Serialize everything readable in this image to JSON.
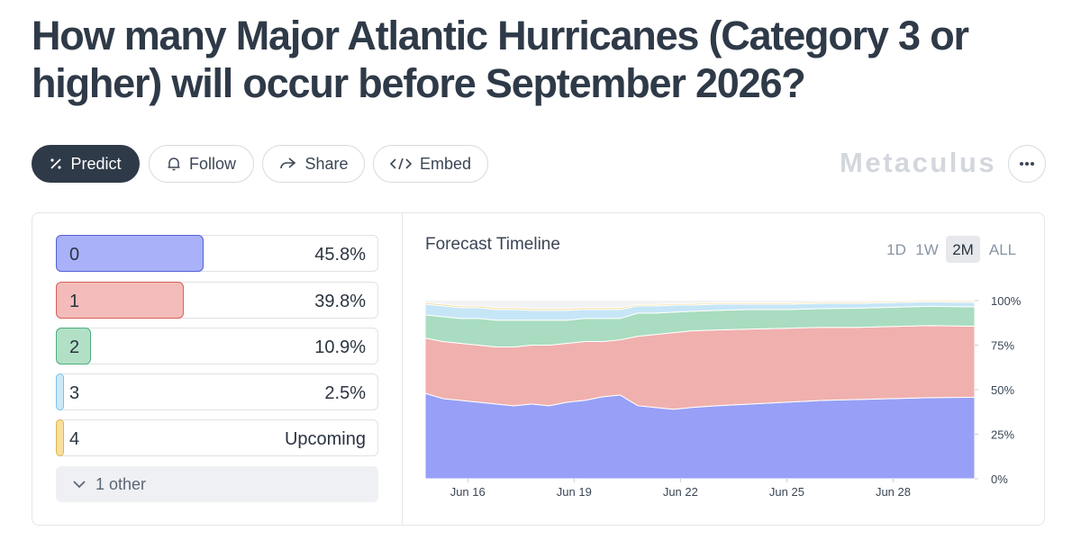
{
  "header": {
    "title_lines": [
      "How many Major Atlantic Hurricanes (Category 3 or",
      "higher) will occur before September 2026?"
    ]
  },
  "toolbar": {
    "buttons": [
      "Predict",
      "Follow",
      "Share",
      "Embed"
    ],
    "brand": "Metaculus"
  },
  "options": [
    {
      "label": "0",
      "value": 45.8,
      "value_label": "45.8%",
      "color": "#a9b1f8",
      "border": "#5561d6"
    },
    {
      "label": "1",
      "value": 39.8,
      "value_label": "39.8%",
      "color": "#f3bcba",
      "border": "#d9605c"
    },
    {
      "label": "2",
      "value": 10.9,
      "value_label": "10.9%",
      "color": "#b2e0c7",
      "border": "#4fae7c"
    },
    {
      "label": "3",
      "value": 2.5,
      "value_label": "2.5%",
      "color": "#cde9f8",
      "border": "#7cc3e8"
    },
    {
      "label": "4",
      "status": "Upcoming",
      "color": "#f6dfa0",
      "border": "#e0b54a"
    }
  ],
  "more_label": "1 other",
  "chart_data": {
    "type": "stacked-area",
    "title": "Forecast Timeline",
    "range_options": [
      "1D",
      "1W",
      "2M",
      "ALL"
    ],
    "active_range_index": 2,
    "x": [
      14.8,
      15.3,
      15.8,
      16.3,
      16.8,
      17.3,
      17.8,
      18.3,
      18.8,
      19.3,
      19.8,
      20.3,
      20.8,
      21.3,
      21.8,
      22.3,
      23,
      24,
      25,
      26,
      27,
      28,
      29,
      30.3
    ],
    "xlim": [
      14.8,
      30.3
    ],
    "xticks": [
      {
        "value": 16,
        "label": "Jun 16"
      },
      {
        "value": 19,
        "label": "Jun 19"
      },
      {
        "value": 22,
        "label": "Jun 22"
      },
      {
        "value": 25,
        "label": "Jun 25"
      },
      {
        "value": 28,
        "label": "Jun 28"
      }
    ],
    "ylim": [
      0,
      100
    ],
    "yticks": [
      {
        "value": 0,
        "label": "0%"
      },
      {
        "value": 25,
        "label": "25%"
      },
      {
        "value": 50,
        "label": "50%"
      },
      {
        "value": 75,
        "label": "75%"
      },
      {
        "value": 100,
        "label": "100%"
      }
    ],
    "series": [
      {
        "color": "#97a0f6",
        "values": [
          48,
          45,
          44,
          43,
          42,
          41,
          42,
          41,
          43,
          44,
          46,
          47,
          41,
          40,
          39,
          40,
          41,
          42,
          43,
          44,
          44.5,
          45,
          45.5,
          45.8
        ]
      },
      {
        "color": "#f0b0ae",
        "values": [
          31,
          32,
          32,
          32,
          32,
          33,
          33,
          34,
          33,
          33,
          31,
          31,
          39,
          41,
          43,
          43,
          42.5,
          42,
          41.5,
          41,
          40.5,
          40.5,
          40.5,
          39.8
        ]
      },
      {
        "color": "#a9dcc0",
        "values": [
          13,
          14,
          14,
          15,
          15,
          15,
          14,
          14,
          13,
          13,
          13,
          12,
          13,
          12,
          11.5,
          11,
          11,
          11,
          10.5,
          10.5,
          10.8,
          10.8,
          10.8,
          10.9
        ]
      },
      {
        "color": "#c6e6f7",
        "values": [
          6,
          6,
          6,
          6,
          6,
          6,
          5.5,
          5.5,
          5.5,
          5,
          5,
          5,
          4,
          4,
          4,
          3.5,
          3.5,
          3,
          3,
          3,
          2.7,
          2.6,
          2.5,
          2.5
        ]
      },
      {
        "color": "#f5dc9c",
        "values": [
          1,
          1,
          1,
          1,
          1,
          1,
          1,
          1,
          1,
          1,
          1,
          1,
          0.8,
          0.8,
          0.8,
          0.8,
          0.8,
          0.8,
          0.8,
          0.8,
          0.8,
          0.8,
          0.8,
          0.8
        ]
      }
    ]
  }
}
